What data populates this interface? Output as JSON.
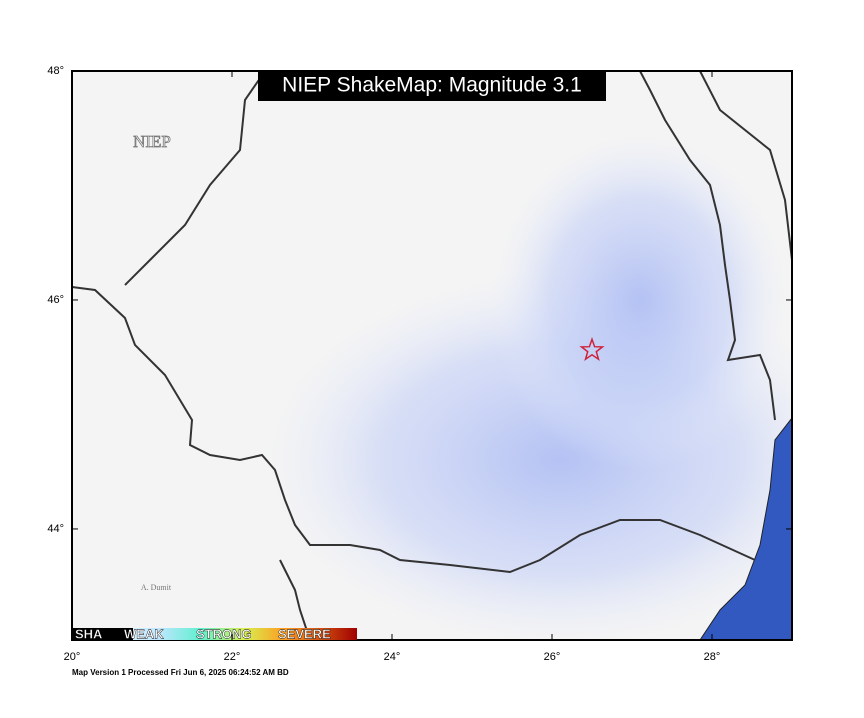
{
  "map": {
    "title": "NIEP ShakeMap: Magnitude 3.1",
    "watermark": "NIEP",
    "credit": "A. Dumit",
    "footer": "Map Version 1 Processed Fri Jun  6, 2025 06:24:52 AM BD",
    "lonlim": [
      20,
      29
    ],
    "latlim": [
      43.03,
      48
    ],
    "lon_ticks": [
      {
        "value": 20,
        "label": "20°"
      },
      {
        "value": 22,
        "label": "22°"
      },
      {
        "value": 24,
        "label": "24°"
      },
      {
        "value": 26,
        "label": "26°"
      },
      {
        "value": 28,
        "label": "28°"
      }
    ],
    "lat_ticks": [
      {
        "value": 48,
        "label": "48°"
      },
      {
        "value": 46,
        "label": "46°"
      },
      {
        "value": 44,
        "label": "44°"
      }
    ],
    "epicenter": {
      "lon": 26.5,
      "lat": 45.56,
      "color": "#d0213b"
    },
    "legend_labels": [
      "SHA",
      "WEAK",
      "STRONG",
      "SEVERE"
    ]
  }
}
